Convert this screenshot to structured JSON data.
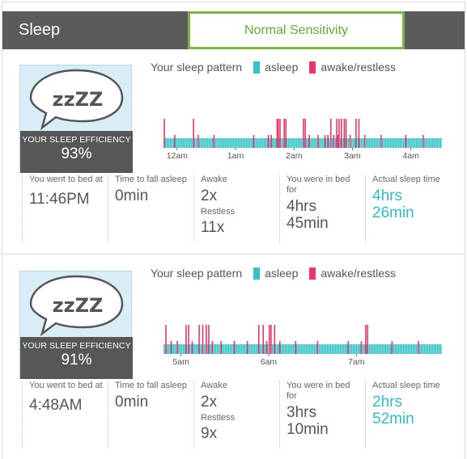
{
  "header": {
    "title": "Sleep",
    "sensitivity_label": "Normal Sensitivity"
  },
  "colors": {
    "asleep": "#35c3c7",
    "awake": "#e8386a",
    "accent_green": "#7cb342"
  },
  "icons": {
    "badge_icon": "zzz-speech-bubble"
  },
  "entries": [
    {
      "badge": {
        "zzz": "zzZZ",
        "efficiency_label": "YOUR SLEEP EFFICIENCY",
        "efficiency_value": "93%"
      },
      "legend": {
        "title": "Your sleep pattern",
        "asleep": "asleep",
        "awake": "awake/restless"
      },
      "chart_data": {
        "type": "bar",
        "title": "Your sleep pattern",
        "series": [
          {
            "name": "asleep",
            "color": "#35c3c7"
          },
          {
            "name": "awake/restless",
            "color": "#e8386a"
          }
        ],
        "x_start_hours": -0.2333,
        "x_end_hours": 4.5167,
        "tick_labels": [
          {
            "hours": 0,
            "label": "12am"
          },
          {
            "hours": 1,
            "label": "1am"
          },
          {
            "hours": 2,
            "label": "2am"
          },
          {
            "hours": 3,
            "label": "3am"
          },
          {
            "hours": 4,
            "label": "4am"
          }
        ],
        "awake_events_hours": [
          -0.23,
          0.27,
          1.7,
          1.72,
          1.75,
          1.82,
          1.85,
          2.15,
          2.18,
          2.62,
          2.72,
          2.76,
          2.8,
          2.85,
          2.88,
          3.05,
          3.1
        ],
        "restless_events_hours": [
          -0.05,
          0.35,
          0.62,
          1.3,
          1.55,
          1.6,
          2.25,
          2.4,
          2.52,
          2.57,
          2.67,
          2.74,
          2.95,
          3.2,
          3.48,
          3.9,
          4.2
        ]
      },
      "stats": {
        "bed_label": "You went to bed at",
        "bed_value": "11:46PM",
        "fall_label": "Time to fall asleep",
        "fall_value": "0min",
        "awake_label": "Awake",
        "awake_value": "2x",
        "restless_label": "Restless",
        "restless_value": "11x",
        "inbed_label": "You were in bed for",
        "inbed_value": "4hrs 45min",
        "actual_label": "Actual sleep time",
        "actual_value": "4hrs 26min"
      }
    },
    {
      "badge": {
        "zzz": "zzZZ",
        "efficiency_label": "YOUR SLEEP EFFICIENCY",
        "efficiency_value": "91%"
      },
      "legend": {
        "title": "Your sleep pattern",
        "asleep": "asleep",
        "awake": "awake/restless"
      },
      "chart_data": {
        "type": "bar",
        "title": "Your sleep pattern",
        "series": [
          {
            "name": "asleep",
            "color": "#35c3c7"
          },
          {
            "name": "awake/restless",
            "color": "#e8386a"
          }
        ],
        "x_start_hours": 4.8,
        "x_end_hours": 7.9667,
        "tick_labels": [
          {
            "hours": 5,
            "label": "5am"
          },
          {
            "hours": 6,
            "label": "6am"
          },
          {
            "hours": 7,
            "label": "7am"
          }
        ],
        "awake_events_hours": [
          4.82,
          5.05,
          5.08,
          5.2,
          5.24,
          5.28,
          5.31,
          5.88,
          5.93,
          6.0,
          6.02,
          6.06,
          7.1,
          7.12
        ],
        "restless_events_hours": [
          4.88,
          4.95,
          5.12,
          5.35,
          5.45,
          5.6,
          5.75,
          5.97,
          6.12,
          6.3,
          6.55,
          6.9,
          7.05,
          7.4,
          7.7
        ]
      },
      "stats": {
        "bed_label": "You went to bed at",
        "bed_value": "4:48AM",
        "fall_label": "Time to fall asleep",
        "fall_value": "0min",
        "awake_label": "Awake",
        "awake_value": "2x",
        "restless_label": "Restless",
        "restless_value": "9x",
        "inbed_label": "You were in bed for",
        "inbed_value": "3hrs 10min",
        "actual_label": "Actual sleep time",
        "actual_value": "2hrs 52min"
      }
    }
  ]
}
